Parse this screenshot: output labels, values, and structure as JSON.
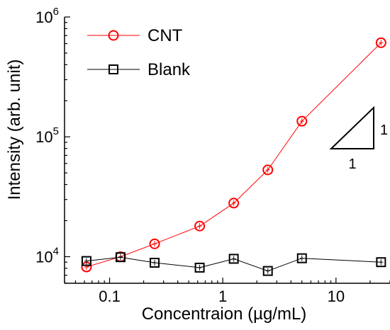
{
  "chart_data": {
    "type": "scatter",
    "xlabel": "Concentraion (µg/mL)",
    "ylabel": "Intensity (arb. unit)",
    "x_scale": "log",
    "y_scale": "log",
    "xlim": [
      0.04,
      30
    ],
    "ylim": [
      6000,
      1000000
    ],
    "x_ticks": [
      {
        "value": 0.1,
        "label": "0.1"
      },
      {
        "value": 1,
        "label": "1"
      },
      {
        "value": 10,
        "label": "10"
      }
    ],
    "y_ticks": [
      {
        "value": 10000,
        "base": "10",
        "exp": "4"
      },
      {
        "value": 100000,
        "base": "10",
        "exp": "5"
      },
      {
        "value": 1000000,
        "base": "10",
        "exp": "6"
      }
    ],
    "legend_position": "top-left",
    "series": [
      {
        "name": "CNT",
        "marker": "circle",
        "color": "#ff0000",
        "points": [
          {
            "x": 0.0625,
            "y": 8200
          },
          {
            "x": 0.125,
            "y": 10000
          },
          {
            "x": 0.25,
            "y": 12800
          },
          {
            "x": 0.625,
            "y": 18000
          },
          {
            "x": 1.25,
            "y": 28000
          },
          {
            "x": 2.5,
            "y": 53000
          },
          {
            "x": 5,
            "y": 135000
          },
          {
            "x": 25,
            "y": 610000
          }
        ]
      },
      {
        "name": "Blank",
        "marker": "square",
        "color": "#000000",
        "points": [
          {
            "x": 0.0625,
            "y": 9200
          },
          {
            "x": 0.125,
            "y": 9900
          },
          {
            "x": 0.25,
            "y": 8900
          },
          {
            "x": 0.625,
            "y": 8100
          },
          {
            "x": 1.25,
            "y": 9600
          },
          {
            "x": 2.5,
            "y": 7600
          },
          {
            "x": 5,
            "y": 9700
          },
          {
            "x": 25,
            "y": 9000
          }
        ]
      }
    ],
    "slope_triangle": {
      "rise_label": "1",
      "run_label": "1"
    }
  }
}
